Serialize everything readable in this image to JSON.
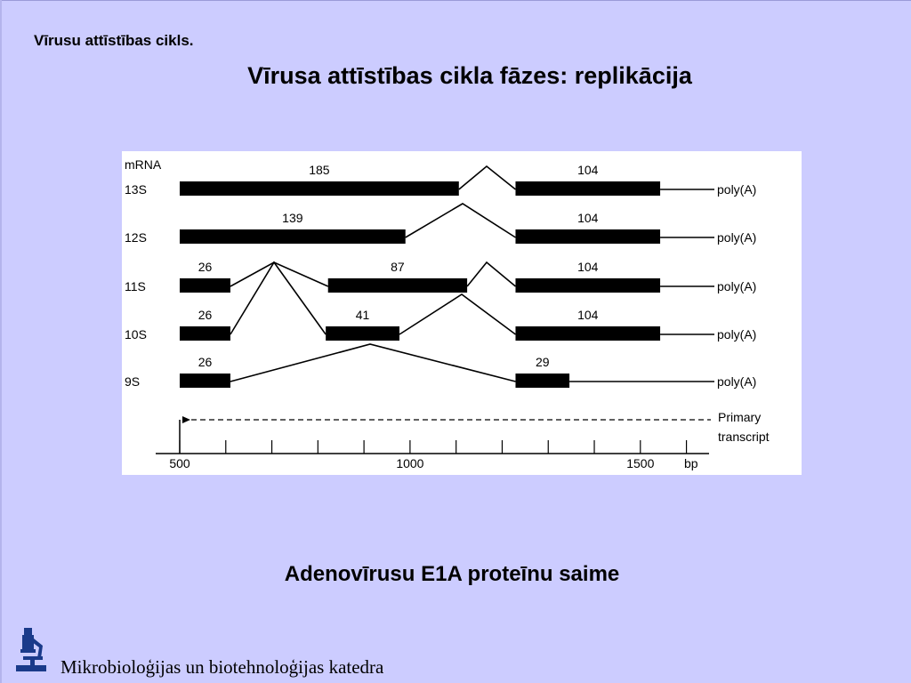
{
  "header": {
    "title": "Vīrusu attīstības cikls."
  },
  "slide": {
    "title": "Vīrusa attīstības cikla fāzes: replikācija"
  },
  "diagram": {
    "mrna_header": "mRNA",
    "tail_label": "poly(A)",
    "transcripts": [
      {
        "name": "13S",
        "exons": [
          {
            "start": 500,
            "end": 1106,
            "label": "185"
          },
          {
            "start": 1229,
            "end": 1543,
            "label": "104"
          }
        ],
        "end_bp": 1630
      },
      {
        "name": "12S",
        "exons": [
          {
            "start": 500,
            "end": 990,
            "label": "139"
          },
          {
            "start": 1229,
            "end": 1543,
            "label": "104"
          }
        ],
        "end_bp": 1630
      },
      {
        "name": "11S",
        "exons": [
          {
            "start": 500,
            "end": 610,
            "label": "26"
          },
          {
            "start": 822,
            "end": 1124,
            "label": "87"
          },
          {
            "start": 1229,
            "end": 1543,
            "label": "104"
          }
        ],
        "end_bp": 1630
      },
      {
        "name": "10S",
        "exons": [
          {
            "start": 500,
            "end": 610,
            "label": "26"
          },
          {
            "start": 817,
            "end": 977,
            "label": "41"
          },
          {
            "start": 1229,
            "end": 1543,
            "label": "104"
          }
        ],
        "end_bp": 1630
      },
      {
        "name": "9S",
        "exons": [
          {
            "start": 500,
            "end": 610,
            "label": "26"
          },
          {
            "start": 1229,
            "end": 1346,
            "label": "29"
          }
        ],
        "end_bp": 1630
      }
    ],
    "primary_transcript": {
      "label_line1": "Primary",
      "label_line2": "transcript",
      "start": 500,
      "end": 1630
    },
    "axis": {
      "ticks": [
        500,
        600,
        700,
        800,
        900,
        1000,
        1100,
        1200,
        1300,
        1400,
        1500,
        1600
      ],
      "tick_labels": [
        "500",
        "1000",
        "1500"
      ],
      "unit": "bp"
    }
  },
  "caption": "Adenovīrusu  E1A proteīnu saime",
  "footer": {
    "department": "Mikrobioloģijas un biotehnoloģijas katedra"
  },
  "colors": {
    "background": "#ccccff",
    "diagram_bg": "#ffffff",
    "ink": "#000000",
    "logo": "#1a3a8a"
  }
}
